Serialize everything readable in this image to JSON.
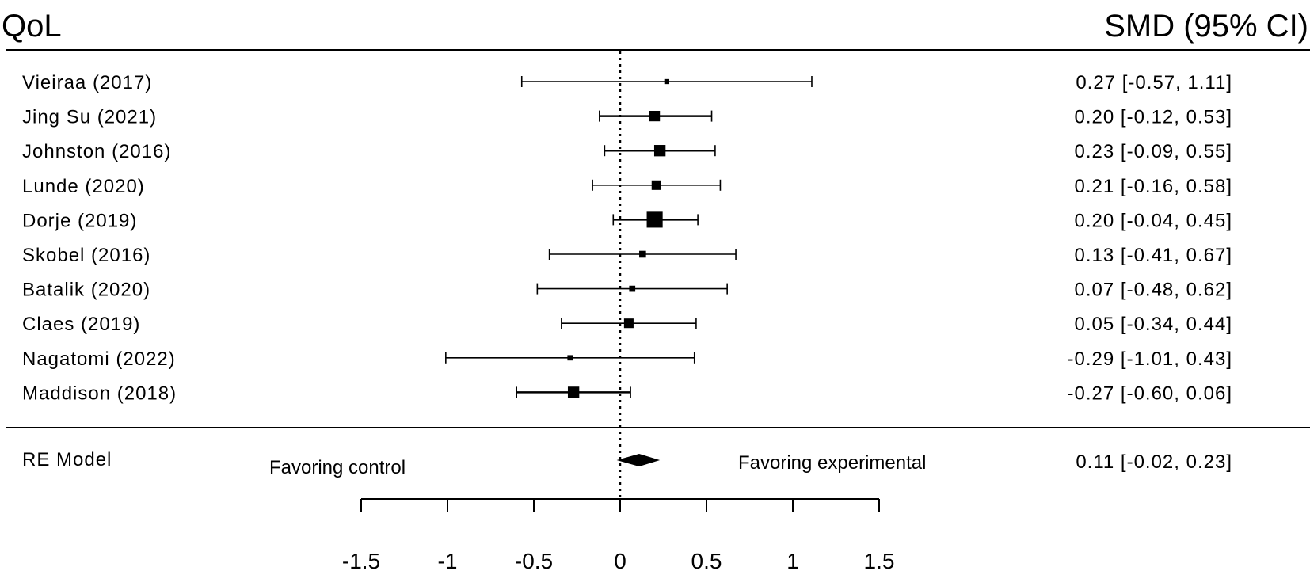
{
  "header": {
    "left_title": "QoL",
    "right_title": "SMD (95% CI)"
  },
  "chart_data": {
    "type": "forest",
    "studies": [
      {
        "label": "Vieiraa (2017)",
        "est": 0.27,
        "lo": -0.57,
        "hi": 1.11,
        "weight": 1,
        "ci_text": "0.27 [-0.57, 1.11]"
      },
      {
        "label": "Jing Su (2021)",
        "est": 0.2,
        "lo": -0.12,
        "hi": 0.53,
        "weight": 4,
        "ci_text": "0.20 [-0.12, 0.53]"
      },
      {
        "label": "Johnston (2016)",
        "est": 0.23,
        "lo": -0.09,
        "hi": 0.55,
        "weight": 4.5,
        "ci_text": "0.23 [-0.09, 0.55]"
      },
      {
        "label": "Lunde (2020)",
        "est": 0.21,
        "lo": -0.16,
        "hi": 0.58,
        "weight": 3.5,
        "ci_text": "0.21 [-0.16, 0.58]"
      },
      {
        "label": "Dorje (2019)",
        "est": 0.2,
        "lo": -0.04,
        "hi": 0.45,
        "weight": 7,
        "ci_text": "0.20 [-0.04, 0.45]"
      },
      {
        "label": "Skobel (2016)",
        "est": 0.13,
        "lo": -0.41,
        "hi": 0.67,
        "weight": 2,
        "ci_text": "0.13 [-0.41, 0.67]"
      },
      {
        "label": "Batalik (2020)",
        "est": 0.07,
        "lo": -0.48,
        "hi": 0.62,
        "weight": 1.6,
        "ci_text": "0.07 [-0.48, 0.62]"
      },
      {
        "label": "Claes (2019)",
        "est": 0.05,
        "lo": -0.34,
        "hi": 0.44,
        "weight": 3.5,
        "ci_text": "0.05 [-0.34, 0.44]"
      },
      {
        "label": "Nagatomi  (2022)",
        "est": -0.29,
        "lo": -1.01,
        "hi": 0.43,
        "weight": 1.2,
        "ci_text": "-0.29 [-1.01, 0.43]"
      },
      {
        "label": "Maddison (2018)",
        "est": -0.27,
        "lo": -0.6,
        "hi": 0.06,
        "weight": 4.5,
        "ci_text": "-0.27 [-0.60, 0.06]"
      }
    ],
    "summary": {
      "label": "RE Model",
      "est": 0.11,
      "lo": -0.02,
      "hi": 0.23,
      "ci_text": "0.11 [-0.02, 0.23]"
    },
    "annotations": {
      "left": "Favoring control",
      "right": "Favoring experimental"
    },
    "x_axis": {
      "ticks": [
        -1.5,
        -1,
        -0.5,
        0,
        0.5,
        1,
        1.5
      ],
      "tick_labels": [
        "-1.5",
        "-1",
        "-0.5",
        "0",
        "0.5",
        "1",
        "1.5"
      ],
      "xlim": [
        -1.5,
        1.5
      ]
    },
    "reference_line": 0
  }
}
